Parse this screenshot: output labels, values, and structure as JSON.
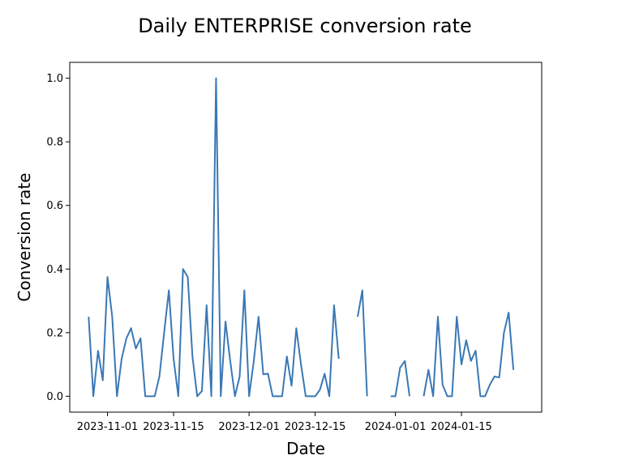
{
  "chart_data": {
    "type": "line",
    "title": "Daily ENTERPRISE conversion rate",
    "xlabel": "Date",
    "ylabel": "Conversion rate",
    "xlim": [
      "2023-10-24",
      "2024-02-01"
    ],
    "ylim": [
      -0.05,
      1.05
    ],
    "x_ticks": [
      "2023-11-01",
      "2023-11-15",
      "2023-12-01",
      "2023-12-15",
      "2024-01-01",
      "2024-01-15"
    ],
    "x_tick_labels": [
      "2023-11-01",
      "2023-11-15",
      "2023-12-01",
      "2023-12-15",
      "2024-01-01",
      "2024-01-15"
    ],
    "y_ticks": [
      0.0,
      0.2,
      0.4,
      0.6,
      0.8,
      1.0
    ],
    "y_tick_labels": [
      "0.0",
      "0.2",
      "0.4",
      "0.6",
      "0.8",
      "1.0"
    ],
    "grid": false,
    "legend": "none",
    "line_color": "#3a78b5",
    "series": [
      {
        "x": [
          "2023-10-28",
          "2023-10-29",
          "2023-10-30",
          "2023-10-31",
          "2023-11-01",
          "2023-11-02",
          "2023-11-03",
          "2023-11-04",
          "2023-11-05",
          "2023-11-06",
          "2023-11-07",
          "2023-11-08",
          "2023-11-09",
          "2023-11-10",
          "2023-11-11",
          "2023-11-12",
          "2023-11-13",
          "2023-11-14",
          "2023-11-15",
          "2023-11-16",
          "2023-11-17",
          "2023-11-18",
          "2023-11-19",
          "2023-11-20",
          "2023-11-21",
          "2023-11-22",
          "2023-11-23",
          "2023-11-24",
          "2023-11-25",
          "2023-11-26",
          "2023-11-27",
          "2023-11-28",
          "2023-11-29",
          "2023-11-30",
          "2023-12-01",
          "2023-12-02",
          "2023-12-03",
          "2023-12-04",
          "2023-12-05",
          "2023-12-06",
          "2023-12-07",
          "2023-12-08",
          "2023-12-09",
          "2023-12-10",
          "2023-12-11",
          "2023-12-12",
          "2023-12-13",
          "2023-12-14",
          "2023-12-15",
          "2023-12-16",
          "2023-12-17",
          "2023-12-18",
          "2023-12-19",
          "2023-12-20",
          "2023-12-21",
          "2023-12-22",
          "2023-12-23",
          "2023-12-24",
          "2023-12-25",
          "2023-12-26",
          "2023-12-27",
          "2023-12-28",
          "2023-12-29",
          "2023-12-30",
          "2023-12-31",
          "2024-01-01",
          "2024-01-02",
          "2024-01-03",
          "2024-01-04",
          "2024-01-05",
          "2024-01-06",
          "2024-01-07",
          "2024-01-08",
          "2024-01-09",
          "2024-01-10",
          "2024-01-11",
          "2024-01-12",
          "2024-01-13",
          "2024-01-14",
          "2024-01-15",
          "2024-01-16",
          "2024-01-17",
          "2024-01-18",
          "2024-01-19",
          "2024-01-20",
          "2024-01-21",
          "2024-01-22",
          "2024-01-23",
          "2024-01-24",
          "2024-01-25",
          "2024-01-26",
          "2024-01-27",
          "2024-01-28",
          "2024-01-29"
        ],
        "y": [
          0.25,
          0.0,
          0.143,
          0.05,
          0.375,
          0.25,
          0.0,
          0.118,
          0.182,
          0.214,
          0.15,
          0.182,
          0.0,
          0.0,
          0.0,
          0.062,
          0.2,
          0.333,
          0.118,
          0.0,
          0.4,
          0.375,
          0.125,
          0.0,
          0.016,
          0.286,
          0.0,
          1.0,
          0.0,
          0.235,
          0.111,
          0.0,
          0.062,
          0.333,
          0.0,
          0.111,
          0.25,
          0.069,
          0.071,
          0.0,
          0.0,
          0.0,
          0.125,
          0.033,
          0.214,
          0.1,
          0.0,
          0.0,
          0.0,
          0.02,
          0.071,
          0.0,
          0.286,
          0.118,
          null,
          null,
          null,
          0.25,
          0.333,
          0.0,
          null,
          null,
          null,
          null,
          0.0,
          0.0,
          0.09,
          0.111,
          0.0,
          null,
          null,
          0.0,
          0.083,
          0.0,
          0.25,
          0.036,
          0.0,
          0.0,
          0.25,
          0.1,
          0.176,
          0.111,
          0.143,
          0.0,
          0.0,
          0.036,
          0.062,
          0.059,
          0.2,
          0.263,
          0.083,
          null,
          null,
          null
        ]
      }
    ]
  }
}
